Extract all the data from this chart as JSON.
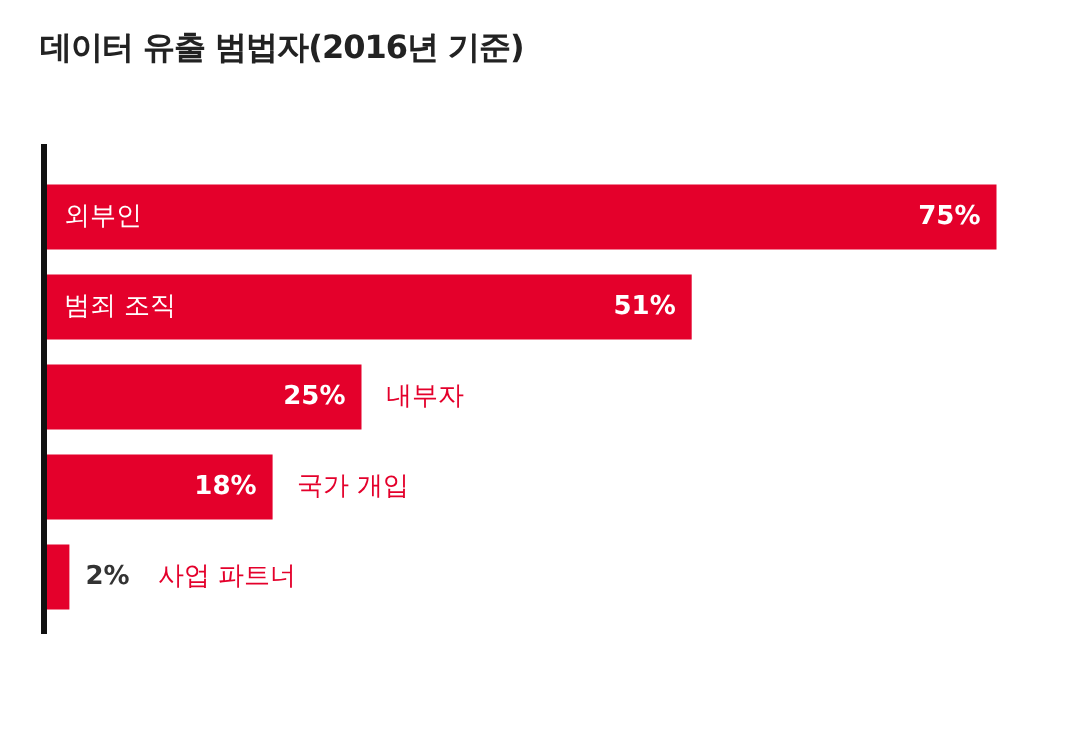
{
  "chart_data": {
    "type": "bar",
    "orientation": "horizontal",
    "title": "데이터 유출 범법자(2016년 기준)",
    "categories": [
      "외부인",
      "범죄 조직",
      "내부자",
      "국가 개입",
      "사업 파트너"
    ],
    "values": [
      75,
      51,
      25,
      18,
      2
    ],
    "value_labels": [
      "75%",
      "51%",
      "25%",
      "18%",
      "2%"
    ],
    "color": "#e4002b",
    "legend": false
  }
}
